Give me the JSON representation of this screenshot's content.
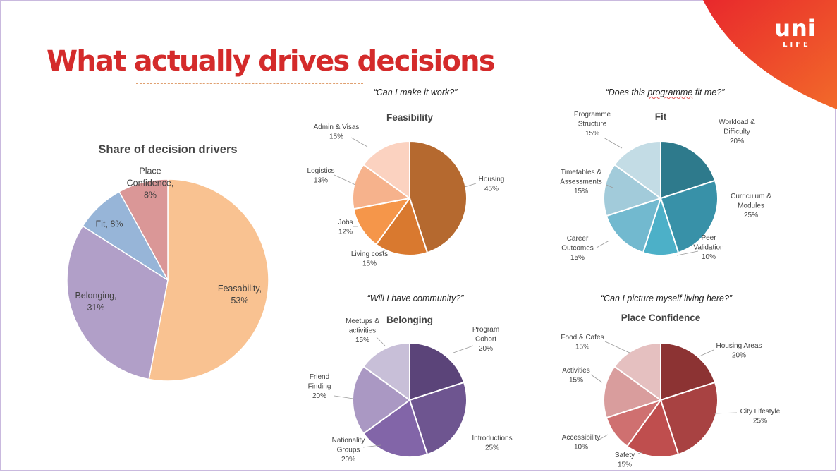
{
  "slide": {
    "title": "What actually drives decisions"
  },
  "logo": {
    "word": "uni",
    "sub": "LIFE"
  },
  "colors": {
    "title": "#d42b2b",
    "brand_gradient": [
      "#e8282c",
      "#f26a2a"
    ]
  },
  "quotes": {
    "feasibility": "“Can I make it work?”",
    "fit_prefix": "“Does this ",
    "fit_wavy": "programme",
    "fit_suffix": " fit me?”",
    "belonging": "“Will I have community?”",
    "place": "“Can I picture myself living here?”"
  },
  "chart_data": [
    {
      "id": "main",
      "type": "pie",
      "title": "Share of decision drivers",
      "categories": [
        "Feasability",
        "Belonging",
        "Fit",
        "Place Confidence"
      ],
      "values": [
        53,
        31,
        8,
        8
      ],
      "value_labels": [
        "53%",
        "31%",
        "8%",
        "8%"
      ],
      "colors": [
        "#f9c291",
        "#b19fc8",
        "#97b5d8",
        "#da9797"
      ]
    },
    {
      "id": "feasibility",
      "type": "pie",
      "title": "Feasibility",
      "categories": [
        "Housing",
        "Living costs",
        "Jobs",
        "Logistics",
        "Admin & Visas"
      ],
      "values": [
        45,
        15,
        12,
        13,
        15
      ],
      "value_labels": [
        "45%",
        "15%",
        "12%",
        "13%",
        "15%"
      ],
      "colors": [
        "#b5692f",
        "#d9792f",
        "#f5964a",
        "#f6b28c",
        "#fbd2c0"
      ]
    },
    {
      "id": "fit",
      "type": "pie",
      "title": "Fit",
      "categories": [
        "Workload & Difficulty",
        "Curriculum & Modules",
        "Peer Validation",
        "Career Outcomes",
        "Timetables & Assessments",
        "Programme Structure"
      ],
      "values": [
        20,
        25,
        10,
        15,
        15,
        15
      ],
      "value_labels": [
        "20%",
        "25%",
        "10%",
        "15%",
        "15%",
        "15%"
      ],
      "colors": [
        "#2e7a8c",
        "#3891a8",
        "#4cb0c8",
        "#72b9cf",
        "#a2cbda",
        "#c3dce5"
      ]
    },
    {
      "id": "belonging",
      "type": "pie",
      "title": "Belonging",
      "categories": [
        "Program Cohort",
        "Introductions",
        "Nationality Groups",
        "Friend Finding",
        "Meetups & activities"
      ],
      "values": [
        20,
        25,
        20,
        20,
        15
      ],
      "value_labels": [
        "20%",
        "25%",
        "20%",
        "20%",
        "15%"
      ],
      "colors": [
        "#5b4479",
        "#6e5590",
        "#8265a8",
        "#aa98c3",
        "#c8bfd8"
      ]
    },
    {
      "id": "place",
      "type": "pie",
      "title": "Place Confidence",
      "categories": [
        "Housing Areas",
        "City Lifestyle",
        "Safety",
        "Accessibility",
        "Activities",
        "Food & Cafes"
      ],
      "values": [
        20,
        25,
        15,
        10,
        15,
        15
      ],
      "value_labels": [
        "20%",
        "25%",
        "15%",
        "10%",
        "15%",
        "15%"
      ],
      "colors": [
        "#8c3333",
        "#a84242",
        "#bf4e4e",
        "#cf7070",
        "#d99d9d",
        "#e5c0c0"
      ]
    }
  ]
}
